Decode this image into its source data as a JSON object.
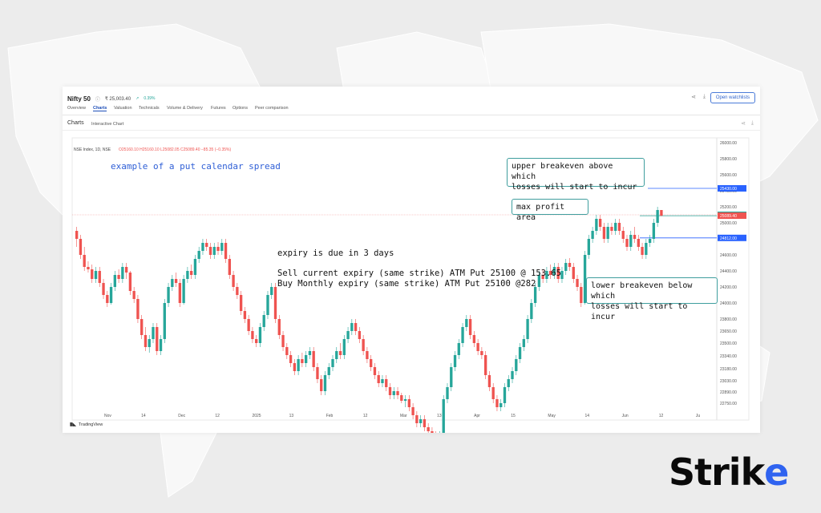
{
  "header": {
    "name": "Nifty 50",
    "price": "₹ 25,003.40",
    "change": "0.39%",
    "watchlist_label": "Open watchlists"
  },
  "tabs": [
    {
      "label": "Overview"
    },
    {
      "label": "Charts"
    },
    {
      "label": "Valuation"
    },
    {
      "label": "Technicals"
    },
    {
      "label": "Volume & Delivery"
    },
    {
      "label": "Futures"
    },
    {
      "label": "Options"
    },
    {
      "label": "Peer comparison"
    }
  ],
  "active_tab": "Charts",
  "subheader": {
    "charts_label": "Charts",
    "interactive_label": "Interactive Chart"
  },
  "legend": {
    "symbol": "NSE Index, 1D, NSE",
    "ohlc": "O25160.10 H25160.10 L25082.05 C25089.40 −85.35 (−0.35%)"
  },
  "annotations": {
    "title": "example of a put calendar spread",
    "upper_breakeven": [
      "upper breakeven above which",
      "losses will start to incur"
    ],
    "max_profit": "max profit area",
    "lower_breakeven": [
      "lower breakeven below which",
      "losses will start to incur"
    ],
    "expiry": "expiry is due in 3 days",
    "sell_line": "Sell current expiry (same strike) ATM Put 25100 @ 153.65",
    "buy_line": "Buy Monthly expiry (same strike) ATM Put 25100 @282"
  },
  "branding": {
    "tradingview": "TradingView",
    "strike_prefix": "Strik",
    "strike_suffix": "e"
  },
  "colors": {
    "up": "#26a69a",
    "down": "#ef5350",
    "accent": "#2f63f0",
    "level_line": "#2962ff",
    "last_price": "#ef5350"
  },
  "chart_data": {
    "type": "candlestick",
    "y_ticks": [
      "26000.00",
      "25800.00",
      "25600.00",
      "25400.00",
      "25200.00",
      "25000.00",
      "24800.00",
      "24600.00",
      "24400.00",
      "24200.00",
      "24000.00",
      "23800.00",
      "23650.00",
      "23500.00",
      "23340.00",
      "23180.00",
      "23030.00",
      "22890.00",
      "22750.00"
    ],
    "x_ticks": [
      "Nov",
      "14",
      "Dec",
      "12",
      "2025",
      "13",
      "Feb",
      "12",
      "Mar",
      "13",
      "Apr",
      "15",
      "May",
      "14",
      "Jun",
      "12",
      "Ju"
    ],
    "price_labels": [
      {
        "text": "25430.00",
        "value": 25430,
        "color": "#2962ff"
      },
      {
        "text": "25100.00",
        "value": 25100,
        "color": "#26a69a"
      },
      {
        "text": "25089.40",
        "value": 25089.4,
        "color": "#ef5350"
      },
      {
        "text": "24812.00",
        "value": 24812,
        "color": "#2962ff"
      }
    ],
    "levels": [
      {
        "name": "upper breakeven",
        "value": 25430
      },
      {
        "name": "strike",
        "value": 25100
      },
      {
        "name": "lower breakeven",
        "value": 24812
      }
    ],
    "candles": [
      [
        24900,
        24800,
        24950,
        24700
      ],
      [
        24800,
        24600,
        24850,
        24550
      ],
      [
        24600,
        24450,
        24700,
        24400
      ],
      [
        24450,
        24420,
        24520,
        24380
      ],
      [
        24420,
        24300,
        24480,
        24250
      ],
      [
        24300,
        24400,
        24450,
        24250
      ],
      [
        24400,
        24250,
        24450,
        24200
      ],
      [
        24250,
        24100,
        24300,
        24050
      ],
      [
        24100,
        24000,
        24150,
        23950
      ],
      [
        24000,
        24200,
        24250,
        23980
      ],
      [
        24200,
        24350,
        24400,
        24150
      ],
      [
        24350,
        24300,
        24420,
        24250
      ],
      [
        24300,
        24450,
        24500,
        24250
      ],
      [
        24450,
        24380,
        24500,
        24300
      ],
      [
        24380,
        24150,
        24400,
        24100
      ],
      [
        24150,
        24050,
        24200,
        24000
      ],
      [
        24050,
        23800,
        24100,
        23750
      ],
      [
        23800,
        23600,
        23850,
        23550
      ],
      [
        23600,
        23450,
        23700,
        23400
      ],
      [
        23450,
        23550,
        23600,
        23380
      ],
      [
        23550,
        23700,
        23750,
        23500
      ],
      [
        23700,
        23400,
        23750,
        23350
      ],
      [
        23400,
        23550,
        23600,
        23350
      ],
      [
        23550,
        24000,
        24050,
        23500
      ],
      [
        24000,
        24200,
        24250,
        23950
      ],
      [
        24200,
        24300,
        24350,
        24150
      ],
      [
        24300,
        24250,
        24380,
        24200
      ],
      [
        24250,
        24000,
        24300,
        23950
      ],
      [
        24000,
        24300,
        24350,
        23980
      ],
      [
        24300,
        24400,
        24450,
        24250
      ],
      [
        24400,
        24350,
        24480,
        24300
      ],
      [
        24350,
        24550,
        24600,
        24300
      ],
      [
        24550,
        24650,
        24700,
        24500
      ],
      [
        24650,
        24750,
        24800,
        24600
      ],
      [
        24750,
        24700,
        24800,
        24650
      ],
      [
        24700,
        24600,
        24750,
        24550
      ],
      [
        24600,
        24700,
        24750,
        24550
      ],
      [
        24700,
        24650,
        24760,
        24600
      ],
      [
        24650,
        24750,
        24800,
        24600
      ],
      [
        24750,
        24550,
        24800,
        24500
      ],
      [
        24550,
        24350,
        24600,
        24300
      ],
      [
        24350,
        24200,
        24400,
        24150
      ],
      [
        24200,
        24100,
        24250,
        24050
      ],
      [
        24100,
        23900,
        24150,
        23850
      ],
      [
        23900,
        23800,
        23950,
        23750
      ],
      [
        23800,
        23650,
        23850,
        23600
      ],
      [
        23650,
        23550,
        23700,
        23500
      ],
      [
        23550,
        23500,
        23600,
        23450
      ],
      [
        23500,
        23700,
        23750,
        23450
      ],
      [
        23700,
        23850,
        23900,
        23650
      ],
      [
        23850,
        24100,
        24150,
        23800
      ],
      [
        24100,
        24200,
        24250,
        24050
      ],
      [
        24200,
        23800,
        24250,
        23750
      ],
      [
        23800,
        23600,
        23850,
        23550
      ],
      [
        23600,
        23450,
        23650,
        23400
      ],
      [
        23450,
        23350,
        23500,
        23300
      ],
      [
        23350,
        23250,
        23400,
        23200
      ],
      [
        23250,
        23150,
        23300,
        23100
      ],
      [
        23150,
        23300,
        23350,
        23100
      ],
      [
        23300,
        23250,
        23380,
        23200
      ],
      [
        23250,
        23350,
        23400,
        23200
      ],
      [
        23350,
        23400,
        23450,
        23300
      ],
      [
        23400,
        23200,
        23450,
        23150
      ],
      [
        23200,
        23050,
        23250,
        23000
      ],
      [
        23050,
        22900,
        23100,
        22850
      ],
      [
        22900,
        23100,
        23150,
        22850
      ],
      [
        23100,
        23200,
        23250,
        23050
      ],
      [
        23200,
        23300,
        23350,
        23150
      ],
      [
        23300,
        23400,
        23450,
        23250
      ],
      [
        23400,
        23350,
        23500,
        23300
      ],
      [
        23350,
        23550,
        23600,
        23300
      ],
      [
        23550,
        23650,
        23700,
        23500
      ],
      [
        23650,
        23750,
        23800,
        23600
      ],
      [
        23750,
        23650,
        23800,
        23600
      ],
      [
        23650,
        23550,
        23700,
        23500
      ],
      [
        23550,
        23400,
        23600,
        23350
      ],
      [
        23400,
        23300,
        23450,
        23250
      ],
      [
        23300,
        23200,
        23350,
        23150
      ],
      [
        23200,
        23100,
        23250,
        23050
      ],
      [
        23100,
        23000,
        23150,
        22950
      ],
      [
        23000,
        23050,
        23100,
        22950
      ],
      [
        23050,
        22950,
        23100,
        22900
      ],
      [
        22950,
        22850,
        23000,
        22800
      ],
      [
        22850,
        22900,
        22950,
        22800
      ],
      [
        22900,
        22850,
        22950,
        22800
      ],
      [
        22850,
        22780,
        22880,
        22750
      ],
      [
        22780,
        22800,
        22850,
        22700
      ],
      [
        22800,
        22700,
        22850,
        22650
      ],
      [
        22700,
        22600,
        22750,
        22550
      ],
      [
        22600,
        22500,
        22650,
        22450
      ],
      [
        22500,
        22550,
        22600,
        22450
      ],
      [
        22550,
        22450,
        22600,
        22400
      ],
      [
        22450,
        22400,
        22500,
        22350
      ],
      [
        22400,
        22350,
        22450,
        22300
      ],
      [
        22350,
        22300,
        22400,
        22250
      ],
      [
        22300,
        22350,
        22400,
        22250
      ],
      [
        22350,
        22800,
        22850,
        22300
      ],
      [
        22800,
        22950,
        23000,
        22750
      ],
      [
        22950,
        23200,
        23250,
        22900
      ],
      [
        23200,
        23350,
        23400,
        23150
      ],
      [
        23350,
        23500,
        23550,
        23300
      ],
      [
        23500,
        23700,
        23750,
        23450
      ],
      [
        23700,
        23800,
        23850,
        23650
      ],
      [
        23800,
        23600,
        23850,
        23550
      ],
      [
        23600,
        23500,
        23650,
        23450
      ],
      [
        23500,
        23400,
        23550,
        23350
      ],
      [
        23400,
        23350,
        23450,
        23300
      ],
      [
        23350,
        23100,
        23400,
        23050
      ],
      [
        23100,
        22950,
        23150,
        22900
      ],
      [
        22950,
        22800,
        23000,
        22750
      ],
      [
        22800,
        22700,
        22850,
        22650
      ],
      [
        22700,
        22750,
        22800,
        22650
      ],
      [
        22750,
        22950,
        23000,
        22700
      ],
      [
        22950,
        23050,
        23100,
        22900
      ],
      [
        23050,
        23150,
        23200,
        23000
      ],
      [
        23150,
        23300,
        23350,
        23100
      ],
      [
        23300,
        23450,
        23500,
        23250
      ],
      [
        23450,
        23550,
        23600,
        23400
      ],
      [
        23550,
        23800,
        23850,
        23500
      ],
      [
        23800,
        24000,
        24050,
        23750
      ],
      [
        24000,
        24200,
        24250,
        23950
      ],
      [
        24200,
        24350,
        24400,
        24150
      ],
      [
        24350,
        24300,
        24420,
        24250
      ],
      [
        24300,
        24400,
        24450,
        24250
      ],
      [
        24400,
        24350,
        24480,
        24300
      ],
      [
        24350,
        24450,
        24500,
        24300
      ],
      [
        24450,
        24300,
        24500,
        24250
      ],
      [
        24300,
        24400,
        24450,
        24250
      ],
      [
        24400,
        24500,
        24550,
        24350
      ],
      [
        24500,
        24450,
        24560,
        24400
      ],
      [
        24450,
        24300,
        24500,
        24250
      ],
      [
        24300,
        24200,
        24350,
        24150
      ],
      [
        24200,
        24000,
        24250,
        23950
      ],
      [
        24000,
        24600,
        24650,
        23980
      ],
      [
        24600,
        24800,
        24850,
        24550
      ],
      [
        24800,
        24900,
        24950,
        24750
      ],
      [
        24900,
        25050,
        25100,
        24850
      ],
      [
        25050,
        24950,
        25100,
        24900
      ],
      [
        24950,
        24800,
        25000,
        24750
      ],
      [
        24800,
        24950,
        25000,
        24750
      ],
      [
        24950,
        24900,
        25000,
        24850
      ],
      [
        24900,
        25000,
        25050,
        24850
      ],
      [
        25000,
        24900,
        25050,
        24850
      ],
      [
        24900,
        24800,
        24950,
        24750
      ],
      [
        24800,
        24700,
        24850,
        24650
      ],
      [
        24700,
        24850,
        24900,
        24650
      ],
      [
        24850,
        24800,
        24950,
        24750
      ],
      [
        24800,
        24700,
        24850,
        24650
      ],
      [
        24700,
        24600,
        24750,
        24550
      ],
      [
        24600,
        24750,
        24800,
        24550
      ],
      [
        24750,
        24800,
        24850,
        24700
      ],
      [
        24800,
        25000,
        25050,
        24750
      ],
      [
        25000,
        25160,
        25200,
        24950
      ],
      [
        25160,
        25089,
        25160,
        25082
      ]
    ]
  }
}
